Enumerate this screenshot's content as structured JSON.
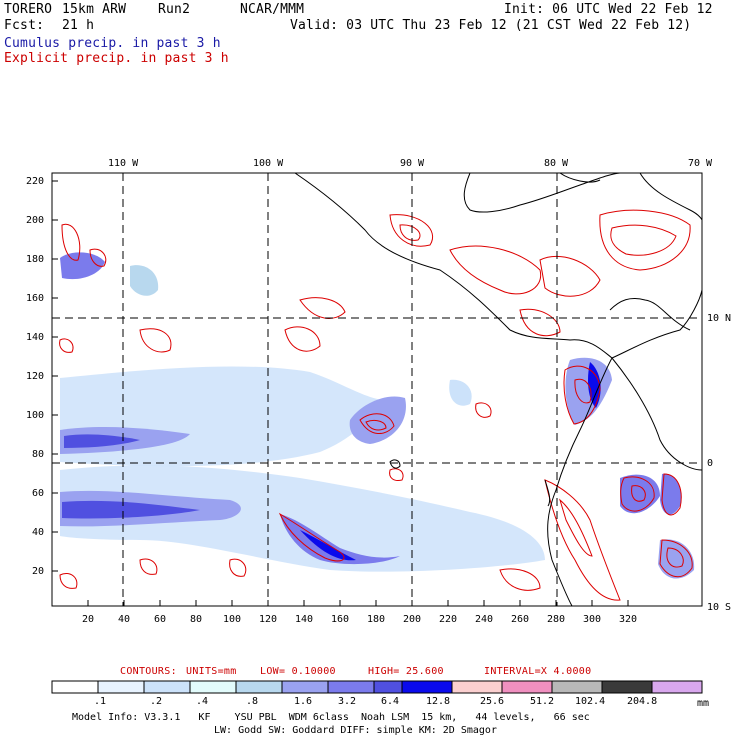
{
  "header": {
    "model": "TORERO",
    "resolution": "15km ARW",
    "run": "Run2",
    "org": "NCAR/MMM",
    "init": "Init: 06 UTC Wed 22 Feb 12",
    "fcst_label": "Fcst:",
    "fcst_value": "21 h",
    "valid": "Valid: 03 UTC Thu 23 Feb 12 (21 CST Wed 22 Feb 12)",
    "cumulus": "Cumulus precip. in past 3 h",
    "explicit": "Explicit precip. in past 3 h"
  },
  "map": {
    "lon_labels": [
      "110 W",
      "100 W",
      "90 W",
      "80 W",
      "70 W"
    ],
    "lat_labels": [
      "10 N",
      "0",
      "10 S"
    ],
    "x_ticks": [
      "20",
      "40",
      "60",
      "80",
      "100",
      "120",
      "140",
      "160",
      "180",
      "200",
      "220",
      "240",
      "260",
      "280",
      "300",
      "320"
    ],
    "y_ticks": [
      "220",
      "200",
      "180",
      "160",
      "140",
      "120",
      "100",
      "80",
      "60",
      "40",
      "20"
    ]
  },
  "contour_info": {
    "label": "CONTOURS:",
    "units": "UNITS=mm",
    "low": "LOW= 0.10000",
    "high": "HIGH= 25.600",
    "interval": "INTERVAL=X 4.0000"
  },
  "legend": {
    "colors": [
      "#ffffff",
      "#e8f3ff",
      "#cce2fa",
      "#e2fbfb",
      "#b8d8ee",
      "#9aa2f0",
      "#7b7bec",
      "#5050e0",
      "#0a0aec",
      "#fbd0d0",
      "#f090c0",
      "#b8b8b8",
      "#3a3a3a",
      "#d9a8ee"
    ],
    "labels": [
      ".1",
      ".2",
      ".4",
      ".8",
      "1.6",
      "3.2",
      "6.4",
      "12.8",
      "25.6",
      "51.2",
      "102.4",
      "204.8"
    ],
    "unit": "mm"
  },
  "model_info": {
    "line1": "Model Info: V3.3.1   KF    YSU PBL  WDM 6class  Noah LSM  15 km,   44 levels,   66 sec",
    "line2": "LW: Godd SW: Goddard DIFF: simple KM: 2D Smagor"
  }
}
